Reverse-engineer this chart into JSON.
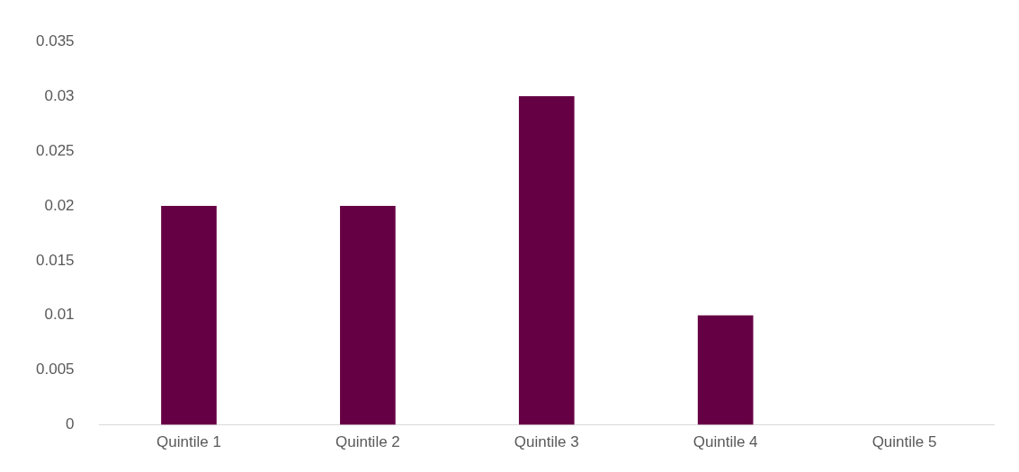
{
  "chart_data": {
    "type": "bar",
    "categories": [
      "Quintile 1",
      "Quintile 2",
      "Quintile 3",
      "Quintile 4",
      "Quintile 5"
    ],
    "values": [
      0.02,
      0.02,
      0.03,
      0.01,
      0
    ],
    "color": "#660044",
    "ylim": [
      0,
      0.035
    ],
    "yticks": [
      0,
      0.005,
      0.01,
      0.015,
      0.02,
      0.025,
      0.03,
      0.035
    ],
    "grid": false,
    "legend": false
  }
}
